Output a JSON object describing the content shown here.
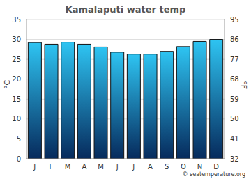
{
  "chart_data": {
    "type": "bar",
    "title": "Kamalaputi water temp",
    "categories": [
      "J",
      "F",
      "M",
      "A",
      "M",
      "J",
      "J",
      "A",
      "S",
      "O",
      "N",
      "D"
    ],
    "values": [
      29.2,
      28.8,
      29.3,
      28.8,
      28.1,
      26.8,
      26.3,
      26.3,
      27.0,
      28.2,
      29.5,
      30.0
    ],
    "color": "#2ec4f2",
    "y_label": "°C",
    "ylim": [
      0,
      35
    ],
    "yticks": [
      0,
      5,
      10,
      15,
      20,
      25,
      30,
      35
    ],
    "y2_label": "°F",
    "y2lim": [
      32,
      95
    ],
    "y2ticks": [
      32,
      41,
      50,
      59,
      68,
      77,
      86,
      95
    ],
    "grid": true,
    "source": "© seatemperature.org"
  }
}
